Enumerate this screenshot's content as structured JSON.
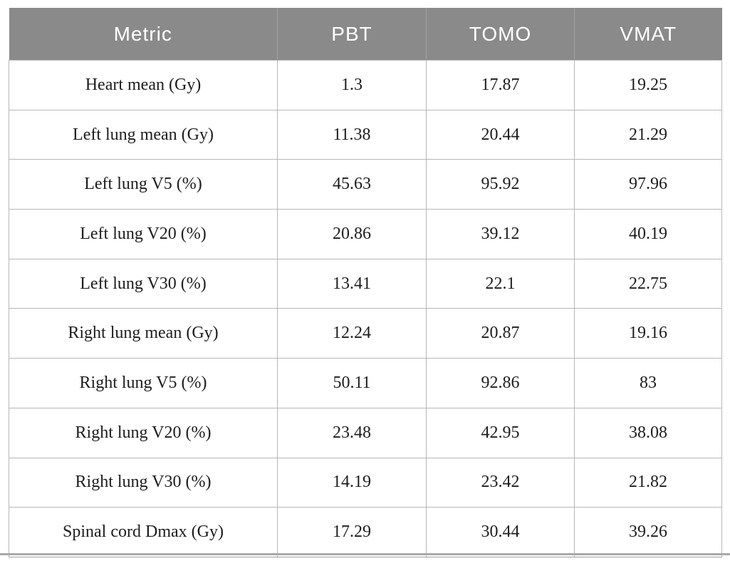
{
  "table": {
    "columns": [
      "Metric",
      "PBT",
      "TOMO",
      "VMAT"
    ],
    "rows": [
      {
        "metric": "Heart mean (Gy)",
        "values": [
          "1.3",
          "17.87",
          "19.25"
        ]
      },
      {
        "metric": "Left lung mean (Gy)",
        "values": [
          "11.38",
          "20.44",
          "21.29"
        ]
      },
      {
        "metric": "Left lung V5 (%)",
        "values": [
          "45.63",
          "95.92",
          "97.96"
        ]
      },
      {
        "metric": "Left lung V20 (%)",
        "values": [
          "20.86",
          "39.12",
          "40.19"
        ]
      },
      {
        "metric": "Left lung V30 (%)",
        "values": [
          "13.41",
          "22.1",
          "22.75"
        ]
      },
      {
        "metric": "Right lung mean (Gy)",
        "values": [
          "12.24",
          "20.87",
          "19.16"
        ]
      },
      {
        "metric": "Right lung V5 (%)",
        "values": [
          "50.11",
          "92.86",
          "83"
        ]
      },
      {
        "metric": "Right lung V20 (%)",
        "values": [
          "23.48",
          "42.95",
          "38.08"
        ]
      },
      {
        "metric": "Right lung V30 (%)",
        "values": [
          "14.19",
          "23.42",
          "21.82"
        ]
      },
      {
        "metric": "Spinal cord Dmax (Gy)",
        "values": [
          "17.29",
          "30.44",
          "39.26"
        ]
      }
    ]
  },
  "colors": {
    "header_bg": "#8a8a8a",
    "header_text": "#ffffff",
    "body_text": "#1d1d1d",
    "grid_border": "#b7b7b7",
    "bottom_rule": "#a9a9a9"
  }
}
